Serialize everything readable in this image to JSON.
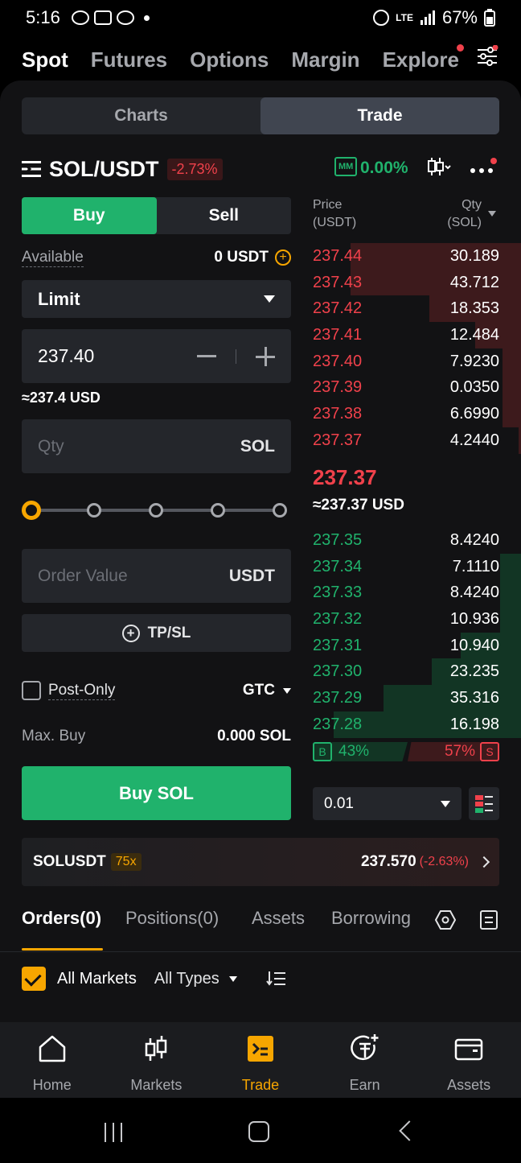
{
  "status": {
    "time": "5:16",
    "battery": "67%",
    "network": "LTE"
  },
  "top_nav": {
    "items": [
      "Spot",
      "Futures",
      "Options",
      "Margin",
      "Explore"
    ]
  },
  "segment": {
    "charts": "Charts",
    "trade": "Trade"
  },
  "pair": {
    "name": "SOL/USDT",
    "change": "-2.73%",
    "mm_label": "MM",
    "mm_value": "0.00%"
  },
  "order_form": {
    "buy_label": "Buy",
    "sell_label": "Sell",
    "available_label": "Available",
    "available_value": "0 USDT",
    "order_type": "Limit",
    "price": "237.40",
    "price_usd": "≈237.4 USD",
    "qty_placeholder": "Qty",
    "qty_unit": "SOL",
    "order_value_placeholder": "Order Value",
    "order_value_unit": "USDT",
    "tpsl_label": "TP/SL",
    "post_only_label": "Post-Only",
    "tif": "GTC",
    "max_buy_label": "Max. Buy",
    "max_buy_value": "0.000 SOL",
    "submit_label": "Buy SOL",
    "slider_percent": 0
  },
  "orderbook": {
    "price_header_1": "Price",
    "price_header_2": "(USDT)",
    "qty_header_1": "Qty",
    "qty_header_2": "(SOL)",
    "asks": [
      {
        "price": "237.44",
        "qty": "30.189",
        "depth": 0.82
      },
      {
        "price": "237.43",
        "qty": "43.712",
        "depth": 0.82
      },
      {
        "price": "237.42",
        "qty": "18.353",
        "depth": 0.44
      },
      {
        "price": "237.41",
        "qty": "12.484",
        "depth": 0.22
      },
      {
        "price": "237.40",
        "qty": "7.9230",
        "depth": 0.09
      },
      {
        "price": "237.39",
        "qty": "0.0350",
        "depth": 0.09
      },
      {
        "price": "237.38",
        "qty": "6.6990",
        "depth": 0.09
      },
      {
        "price": "237.37",
        "qty": "4.2440",
        "depth": 0.01
      }
    ],
    "last_price": "237.37",
    "last_price_usd": "≈237.37 USD",
    "bids": [
      {
        "price": "237.35",
        "qty": "8.4240",
        "depth": 0.0
      },
      {
        "price": "237.34",
        "qty": "7.1110",
        "depth": 0.1
      },
      {
        "price": "237.33",
        "qty": "8.4240",
        "depth": 0.1
      },
      {
        "price": "237.32",
        "qty": "10.936",
        "depth": 0.1
      },
      {
        "price": "237.31",
        "qty": "10.940",
        "depth": 0.29
      },
      {
        "price": "237.30",
        "qty": "23.235",
        "depth": 0.43
      },
      {
        "price": "237.29",
        "qty": "35.316",
        "depth": 0.66
      },
      {
        "price": "237.28",
        "qty": "16.198",
        "depth": 0.9
      }
    ],
    "buy_ratio_label": "B",
    "buy_ratio": "43%",
    "sell_ratio": "57%",
    "sell_ratio_label": "S",
    "tick_size": "0.01"
  },
  "ticker": {
    "symbol": "SOLUSDT",
    "leverage": "75x",
    "price": "237.570",
    "change": "(-2.63%)"
  },
  "tabs": [
    "Orders(0)",
    "Positions(0)",
    "Assets",
    "Borrowing"
  ],
  "filters": {
    "all_markets": "All Markets",
    "all_types": "All Types"
  },
  "bottom_nav": [
    "Home",
    "Markets",
    "Trade",
    "Earn",
    "Assets"
  ],
  "colors": {
    "green": "#20b26c",
    "red": "#f0414b",
    "accent": "#f7a600"
  }
}
